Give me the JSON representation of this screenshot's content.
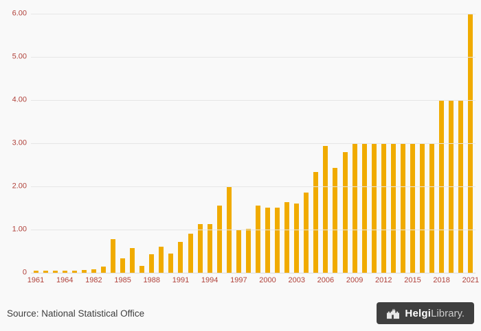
{
  "chart_data": {
    "type": "bar",
    "title": "",
    "xlabel": "",
    "ylabel": "",
    "x": [
      1961,
      1962,
      1963,
      1964,
      1965,
      1981,
      1982,
      1983,
      1984,
      1985,
      1986,
      1987,
      1988,
      1989,
      1990,
      1991,
      1992,
      1993,
      1994,
      1995,
      1996,
      1997,
      1998,
      1999,
      2000,
      2001,
      2002,
      2003,
      2004,
      2005,
      2006,
      2007,
      2008,
      2009,
      2010,
      2011,
      2012,
      2013,
      2014,
      2015,
      2016,
      2017,
      2018,
      2019,
      2020,
      2021
    ],
    "values": [
      0.05,
      0.05,
      0.04,
      0.05,
      0.05,
      0.07,
      0.08,
      0.15,
      0.78,
      0.33,
      0.57,
      0.16,
      0.43,
      0.6,
      0.45,
      0.72,
      0.9,
      1.13,
      1.13,
      1.55,
      2.0,
      1.0,
      1.02,
      1.55,
      1.5,
      1.5,
      1.63,
      1.6,
      1.85,
      2.33,
      2.93,
      2.43,
      2.8,
      3.0,
      3.0,
      3.0,
      3.0,
      3.0,
      3.0,
      3.0,
      3.0,
      3.0,
      4.0,
      4.0,
      4.0,
      6.0
    ],
    "x_tick_labels": [
      "1961",
      "1964",
      "1982",
      "1985",
      "1988",
      "1991",
      "1994",
      "1997",
      "2000",
      "2003",
      "2006",
      "2009",
      "2012",
      "2015",
      "2018",
      "2021"
    ],
    "x_label_every": 3,
    "ylim": [
      0,
      6
    ],
    "y_ticks": [
      0,
      1,
      2,
      3,
      4,
      5,
      6
    ],
    "y_tick_labels": [
      "0",
      "1.00",
      "2.00",
      "3.00",
      "4.00",
      "5.00",
      "6.00"
    ],
    "grid": "horizontal",
    "legend": "none",
    "bar_color": "#F0AB00"
  },
  "footer": {
    "source": "Source: National Statistical Office",
    "logo_brand_primary": "Helgi",
    "logo_brand_secondary": "Library."
  },
  "colors": {
    "background": "#f9f9f9",
    "bar": "#F0AB00",
    "axis_labels": "#b0413a",
    "gridline": "#e6e6e6",
    "source_text": "#3d3d3d",
    "logo_background": "#3f3f3f"
  }
}
